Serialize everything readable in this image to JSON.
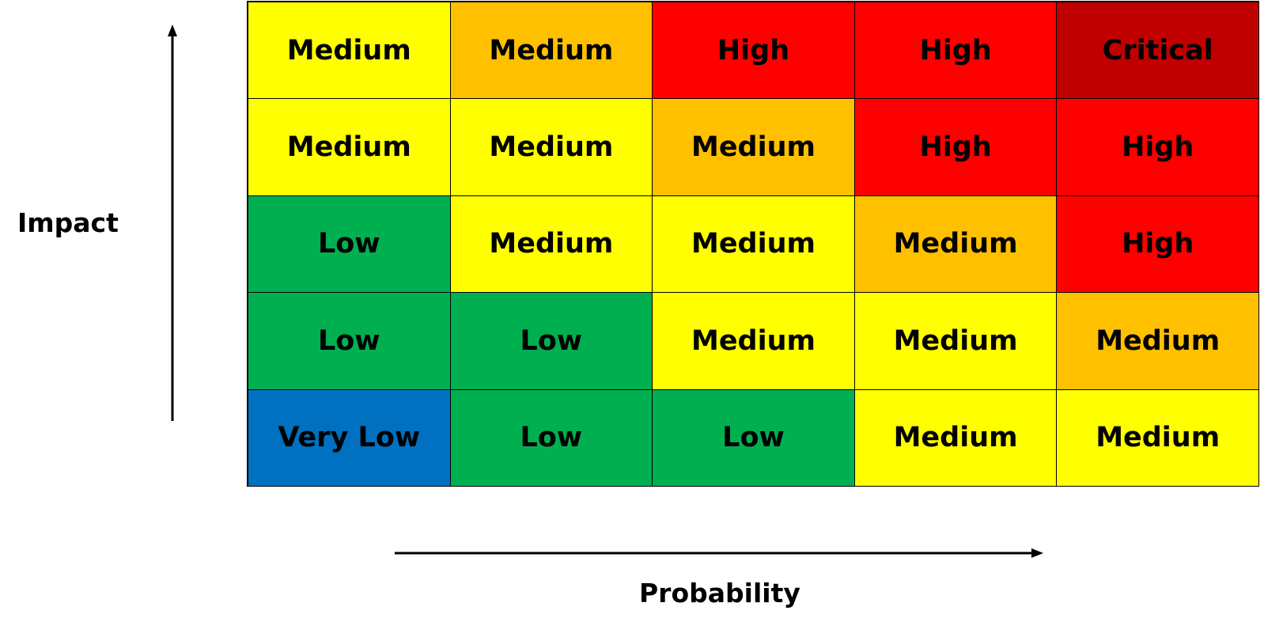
{
  "axes": {
    "y_label": "Impact",
    "x_label": "Probability"
  },
  "colors": {
    "Very Low": "#0070C0",
    "Low": "#00B050",
    "Medium-yellow": "#FFFF00",
    "Medium-amber": "#FFC000",
    "High": "#FF0000",
    "Critical": "#C00000"
  },
  "matrix": {
    "rows": [
      [
        {
          "label": "Medium",
          "color": "#FFFF00"
        },
        {
          "label": "Medium",
          "color": "#FFC000"
        },
        {
          "label": "High",
          "color": "#FF0000"
        },
        {
          "label": "High",
          "color": "#FF0000"
        },
        {
          "label": "Critical",
          "color": "#C00000"
        }
      ],
      [
        {
          "label": "Medium",
          "color": "#FFFF00"
        },
        {
          "label": "Medium",
          "color": "#FFFF00"
        },
        {
          "label": "Medium",
          "color": "#FFC000"
        },
        {
          "label": "High",
          "color": "#FF0000"
        },
        {
          "label": "High",
          "color": "#FF0000"
        }
      ],
      [
        {
          "label": "Low",
          "color": "#00B050"
        },
        {
          "label": "Medium",
          "color": "#FFFF00"
        },
        {
          "label": "Medium",
          "color": "#FFFF00"
        },
        {
          "label": "Medium",
          "color": "#FFC000"
        },
        {
          "label": "High",
          "color": "#FF0000"
        }
      ],
      [
        {
          "label": "Low",
          "color": "#00B050"
        },
        {
          "label": "Low",
          "color": "#00B050"
        },
        {
          "label": "Medium",
          "color": "#FFFF00"
        },
        {
          "label": "Medium",
          "color": "#FFFF00"
        },
        {
          "label": "Medium",
          "color": "#FFC000"
        }
      ],
      [
        {
          "label": "Very Low",
          "color": "#0070C0"
        },
        {
          "label": "Low",
          "color": "#00B050"
        },
        {
          "label": "Low",
          "color": "#00B050"
        },
        {
          "label": "Medium",
          "color": "#FFFF00"
        },
        {
          "label": "Medium",
          "color": "#FFFF00"
        }
      ]
    ]
  }
}
